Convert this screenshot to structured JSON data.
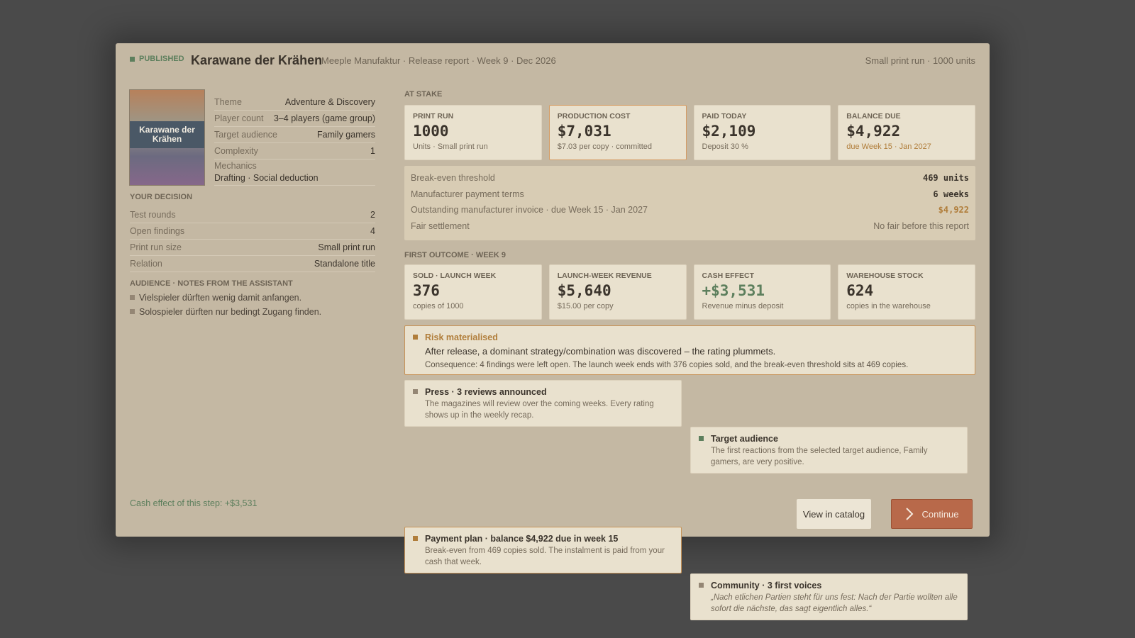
{
  "header": {
    "status": "PUBLISHED",
    "title": "Karawane der Krähen",
    "subtitle": "Meeple Manufaktur · Release report · Week 9 · Dec 2026",
    "summary": "Small print run · 1000 units"
  },
  "cover": {
    "label": "Karawane der Krähen"
  },
  "details": [
    {
      "label": "Theme",
      "value": "Adventure & Discovery"
    },
    {
      "label": "Player count",
      "value": "3–4 players (game group)"
    },
    {
      "label": "Target audience",
      "value": "Family gamers"
    },
    {
      "label": "Complexity",
      "value": 1
    },
    {
      "label": "Mechanics",
      "value": "Drafting · Social deduction"
    }
  ],
  "decision": {
    "title": "YOUR DECISION",
    "rows": [
      {
        "label": "Test rounds",
        "value": 2
      },
      {
        "label": "Open findings",
        "value": 4
      },
      {
        "label": "Print run size",
        "value": "Small print run"
      },
      {
        "label": "Relation",
        "value": "Standalone title"
      }
    ]
  },
  "audience": {
    "title": "AUDIENCE · NOTES FROM THE ASSISTANT",
    "notes": [
      "Vielspieler dürften wenig damit anfangen.",
      "Solospieler dürften nur bedingt Zugang finden."
    ]
  },
  "at_stake": {
    "title": "AT STAKE",
    "cards": [
      {
        "label": "PRINT RUN",
        "value": "1000",
        "note": "Units · Small print run"
      },
      {
        "label": "PRODUCTION COST",
        "value": "$7,031",
        "note": "$7.03 per copy · committed"
      },
      {
        "label": "PAID TODAY",
        "value": "$2,109",
        "note": "Deposit 30 %"
      },
      {
        "label": "BALANCE DUE",
        "value": "$4,922",
        "note": "due Week 15 · Jan 2027"
      }
    ],
    "rows": [
      {
        "label": "Break-even threshold",
        "value": "469 units"
      },
      {
        "label": "Manufacturer payment terms",
        "value": "6 weeks"
      },
      {
        "label": "Outstanding manufacturer invoice · due Week 15 · Jan 2027",
        "value": "$4,922"
      },
      {
        "label": "Fair settlement",
        "value": "No fair before this report"
      }
    ]
  },
  "outcome": {
    "title": "FIRST OUTCOME · WEEK 9",
    "cards": [
      {
        "label": "SOLD · LAUNCH WEEK",
        "value": "376",
        "note": "copies of 1000"
      },
      {
        "label": "LAUNCH-WEEK REVENUE",
        "value": "$5,640",
        "note": "$15.00 per copy"
      },
      {
        "label": "CASH EFFECT",
        "value": "+$3,531",
        "note": "Revenue minus deposit"
      },
      {
        "label": "WAREHOUSE STOCK",
        "value": "624",
        "note": "copies in the warehouse"
      }
    ]
  },
  "risk": {
    "title": "Risk materialised",
    "text": "After release, a dominant strategy/combination was discovered – the rating plummets.",
    "consequence": "Consequence: 4 findings were left open. The launch week ends with 376 copies sold, and the break-even threshold sits at 469 copies."
  },
  "notes": [
    {
      "title": "Press · 3 reviews announced",
      "text": "The magazines will review over the coming weeks. Every rating shows up in the weekly recap."
    },
    {
      "title": "Target audience",
      "text": "The first reactions from the selected target audience, Family gamers, are very positive."
    },
    {
      "title": "Payment plan · balance $4,922 due in week 15",
      "text": "Break-even from 469 copies sold. The instalment is paid from your cash that week."
    },
    {
      "title": "Community · 3 first voices",
      "text": "„Nach etlichen Partien steht für uns fest: Nach der Partie wollten alle sofort die nächste, das sagt eigentlich alles.“"
    }
  ],
  "footer": {
    "cash_effect": "Cash effect of this step: +$3,531",
    "view_button": "View in catalog",
    "continue_button": "Continue"
  }
}
